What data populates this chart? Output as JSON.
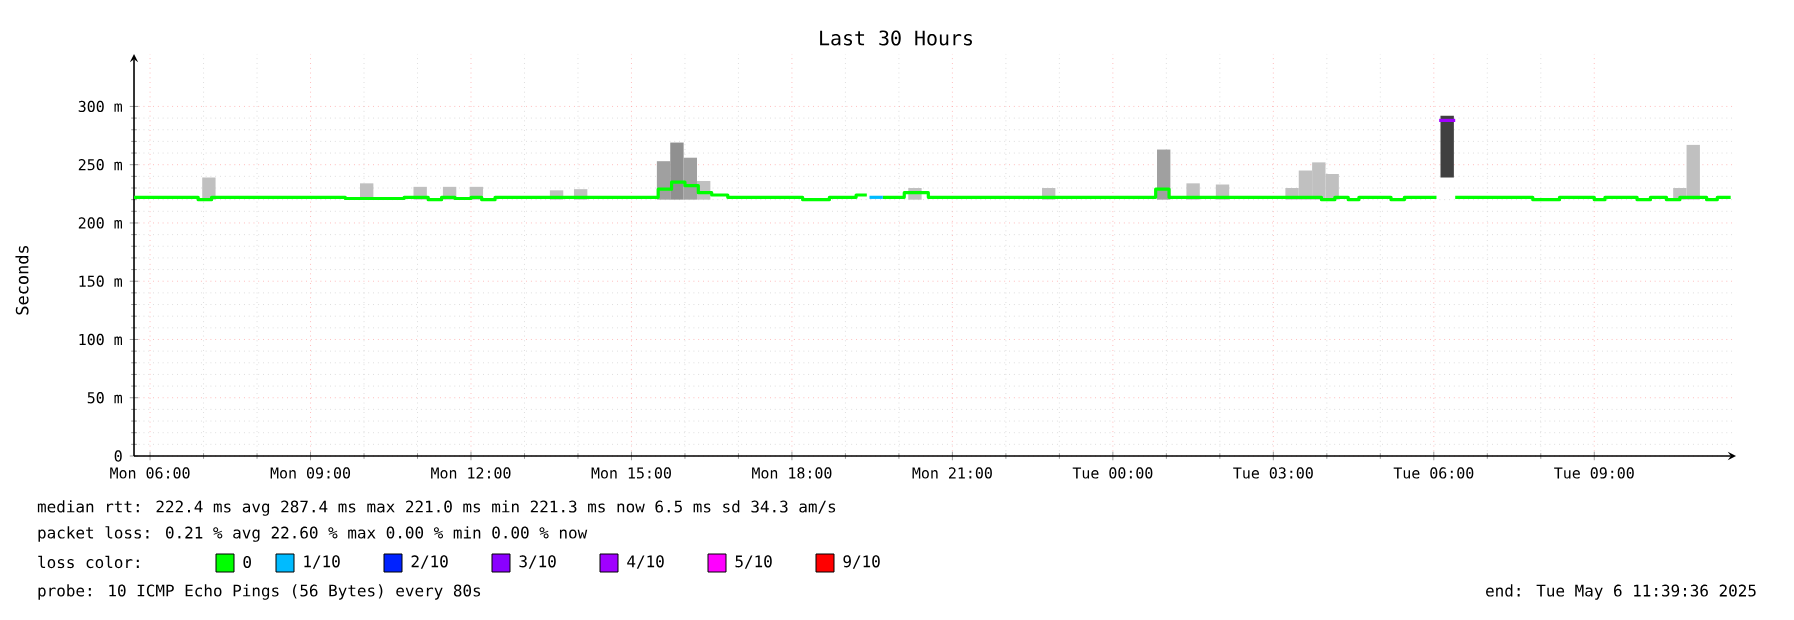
{
  "chart_data": {
    "type": "step",
    "title": "Last 30 Hours",
    "ylabel": "Seconds",
    "legend_title": "loss color:",
    "legend": "bottom",
    "grid": true,
    "xlim": [
      "2025-05-05T05:42",
      "2025-05-06T11:39"
    ],
    "ylim": [
      0,
      345
    ],
    "xticks": [
      {
        "value": "2025-05-05T06:00",
        "label": "Mon 06:00"
      },
      {
        "value": "2025-05-05T09:00",
        "label": "Mon 09:00"
      },
      {
        "value": "2025-05-05T12:00",
        "label": "Mon 12:00"
      },
      {
        "value": "2025-05-05T15:00",
        "label": "Mon 15:00"
      },
      {
        "value": "2025-05-05T18:00",
        "label": "Mon 18:00"
      },
      {
        "value": "2025-05-05T21:00",
        "label": "Mon 21:00"
      },
      {
        "value": "2025-05-06T00:00",
        "label": "Tue 00:00"
      },
      {
        "value": "2025-05-06T03:00",
        "label": "Tue 03:00"
      },
      {
        "value": "2025-05-06T06:00",
        "label": "Tue 06:00"
      },
      {
        "value": "2025-05-06T09:00",
        "label": "Tue 09:00"
      }
    ],
    "yticks": [
      0,
      {
        "value": 50,
        "label": "50 m"
      },
      {
        "value": 100,
        "label": "100 m"
      },
      {
        "value": 150,
        "label": "150 m"
      },
      {
        "value": 200,
        "label": "200 m"
      },
      {
        "value": 250,
        "label": "250 m"
      },
      {
        "value": 300,
        "label": "300 m"
      }
    ],
    "x": [
      "2025-05-05T05:42",
      "2025-05-05T06:54",
      "2025-05-05T07:09",
      "2025-05-05T09:39",
      "2025-05-05T10:45",
      "2025-05-05T10:57",
      "2025-05-05T11:12",
      "2025-05-05T11:27",
      "2025-05-05T11:42",
      "2025-05-05T12:00",
      "2025-05-05T12:12",
      "2025-05-05T12:27",
      "2025-05-05T15:30",
      "2025-05-05T15:45",
      "2025-05-05T16:00",
      "2025-05-05T16:15",
      "2025-05-05T16:30",
      "2025-05-05T16:48",
      "2025-05-05T18:12",
      "2025-05-05T18:42",
      "2025-05-05T19:12",
      "2025-05-05T19:24",
      "2025-05-05T19:27",
      "2025-05-05T19:42",
      "2025-05-05T20:06",
      "2025-05-05T20:33",
      "2025-05-06T00:48",
      "2025-05-06T01:03",
      "2025-05-06T03:54",
      "2025-05-06T04:09",
      "2025-05-06T04:24",
      "2025-05-06T04:36",
      "2025-05-06T05:12",
      "2025-05-06T05:27",
      "2025-05-06T06:03",
      "2025-05-06T06:06",
      "2025-05-06T06:24",
      "2025-05-06T07:51",
      "2025-05-06T08:21",
      "2025-05-06T09:00",
      "2025-05-06T09:12",
      "2025-05-06T09:48",
      "2025-05-06T10:03",
      "2025-05-06T10:21",
      "2025-05-06T10:36",
      "2025-05-06T11:06",
      "2025-05-06T11:18",
      "2025-05-06T11:33"
    ],
    "series": [
      {
        "type": "bar",
        "colors": [
          "#c0c0c0",
          "#c0c0c0",
          "#c0c0c0",
          "#c0c0c0",
          "#c0c0c0",
          "#c0c0c0",
          "#c0c0c0",
          "#a0a0a0",
          "#909090",
          "#a0a0a0",
          "#c0c0c0",
          "#c0c0c0",
          "#c0c0c0",
          "#c0c0c0",
          "#a0a0a0",
          "#c0c0c0",
          "#c0c0c0",
          "#c0c0c0",
          "#c0c0c0",
          "#c0c0c0",
          "#c0c0c0",
          "#404040",
          "#c0c0c0",
          "#c0c0c0"
        ],
        "x": [
          "2025-05-05T07:06",
          "2025-05-05T10:03",
          "2025-05-05T11:03",
          "2025-05-05T11:36",
          "2025-05-05T12:06",
          "2025-05-05T13:36",
          "2025-05-05T14:03",
          "2025-05-05T15:36",
          "2025-05-05T15:51",
          "2025-05-05T16:06",
          "2025-05-05T16:21",
          "2025-05-05T17:45",
          "2025-05-05T20:18",
          "2025-05-05T22:48",
          "2025-05-06T00:57",
          "2025-05-06T01:30",
          "2025-05-06T02:03",
          "2025-05-06T03:21",
          "2025-05-06T03:36",
          "2025-05-06T03:51",
          "2025-05-06T04:06",
          "2025-05-06T06:15",
          "2025-05-06T10:36",
          "2025-05-06T10:51"
        ],
        "base": [
          220,
          220,
          220,
          220,
          220,
          220,
          220,
          220,
          220,
          220,
          220,
          null,
          220,
          220,
          220,
          220,
          220,
          220,
          220,
          220,
          220,
          239,
          220,
          220
        ],
        "values": [
          19,
          14,
          11,
          11,
          11,
          8,
          9,
          33,
          49,
          36,
          16,
          null,
          10,
          10,
          43,
          14,
          13,
          10,
          25,
          32,
          22,
          53,
          10,
          47
        ]
      },
      {
        "name": "0",
        "color": "#00ff00",
        "values": [
          222,
          220,
          222,
          221,
          222,
          222,
          220,
          222,
          221,
          222,
          220,
          222,
          229,
          235,
          232,
          226,
          224,
          222,
          220,
          222,
          224,
          224,
          null,
          222,
          226,
          222,
          229,
          222,
          220,
          222,
          220,
          222,
          220,
          222,
          222,
          null,
          222,
          220,
          222,
          220,
          222,
          220,
          222,
          220,
          222,
          220,
          222,
          222
        ]
      },
      {
        "name": "1/10",
        "color": "#00bbff",
        "values": [
          null,
          null,
          null,
          null,
          null,
          null,
          null,
          null,
          null,
          null,
          null,
          null,
          null,
          null,
          null,
          null,
          null,
          null,
          null,
          null,
          null,
          null,
          222,
          222,
          null,
          null,
          null,
          null,
          null,
          null,
          null,
          null,
          null,
          null,
          null,
          null,
          null,
          null,
          null,
          null,
          null,
          null,
          null,
          null,
          null,
          null,
          null,
          null
        ]
      },
      {
        "name": "2/10",
        "color": "#0022ff",
        "values": [
          null,
          null,
          null,
          null,
          null,
          null,
          null,
          null,
          null,
          null,
          null,
          null,
          null,
          null,
          null,
          null,
          null,
          null,
          null,
          null,
          null,
          null,
          null,
          null,
          null,
          null,
          null,
          null,
          null,
          null,
          null,
          null,
          null,
          null,
          null,
          null,
          null,
          null,
          null,
          null,
          null,
          null,
          null,
          null,
          null,
          null,
          null,
          null
        ]
      },
      {
        "name": "3/10",
        "color": "#8a00ff",
        "values": [
          null,
          null,
          null,
          null,
          null,
          null,
          null,
          null,
          null,
          null,
          null,
          null,
          null,
          null,
          null,
          null,
          null,
          null,
          null,
          null,
          null,
          null,
          null,
          null,
          null,
          null,
          null,
          null,
          null,
          null,
          null,
          null,
          null,
          null,
          null,
          null,
          null,
          null,
          null,
          null,
          null,
          null,
          null,
          null,
          null,
          null,
          null,
          null
        ]
      },
      {
        "name": "4/10",
        "color": "#a000ff",
        "values": [
          null,
          null,
          null,
          null,
          null,
          null,
          null,
          null,
          null,
          null,
          null,
          null,
          null,
          null,
          null,
          null,
          null,
          null,
          null,
          null,
          null,
          null,
          null,
          null,
          null,
          null,
          null,
          null,
          null,
          null,
          null,
          null,
          null,
          null,
          null,
          288,
          288,
          null,
          null,
          null,
          null,
          null,
          null,
          null,
          null,
          null,
          null,
          null
        ]
      },
      {
        "name": "5/10",
        "color": "#ff00ff",
        "values": [
          null,
          null,
          null,
          null,
          null,
          null,
          null,
          null,
          null,
          null,
          null,
          null,
          null,
          null,
          null,
          null,
          null,
          null,
          null,
          null,
          null,
          null,
          null,
          null,
          null,
          null,
          null,
          null,
          null,
          null,
          null,
          null,
          null,
          null,
          null,
          null,
          null,
          null,
          null,
          null,
          null,
          null,
          null,
          null,
          null,
          null,
          null,
          null
        ]
      },
      {
        "name": "9/10",
        "color": "#ff0000",
        "values": [
          null,
          null,
          null,
          null,
          null,
          null,
          null,
          null,
          null,
          null,
          null,
          null,
          null,
          null,
          null,
          null,
          null,
          null,
          null,
          null,
          null,
          null,
          null,
          null,
          null,
          null,
          null,
          null,
          null,
          null,
          null,
          null,
          null,
          null,
          null,
          null,
          null,
          null,
          null,
          null,
          null,
          null,
          null,
          null,
          null,
          null,
          null,
          null
        ]
      }
    ],
    "annotations": [
      "median rtt: 222.4 ms avg 287.4 ms max 221.0 ms min 221.3 ms now 6.5 ms sd 34.3 am/s",
      "packet loss: 0.21 % avg 22.60 % max 0.00 % min 0.00 % now",
      "probe: 10 ICMP Echo Pings (56 Bytes) every 80s",
      "end: Tue May 6 11:39:36 2025"
    ]
  }
}
